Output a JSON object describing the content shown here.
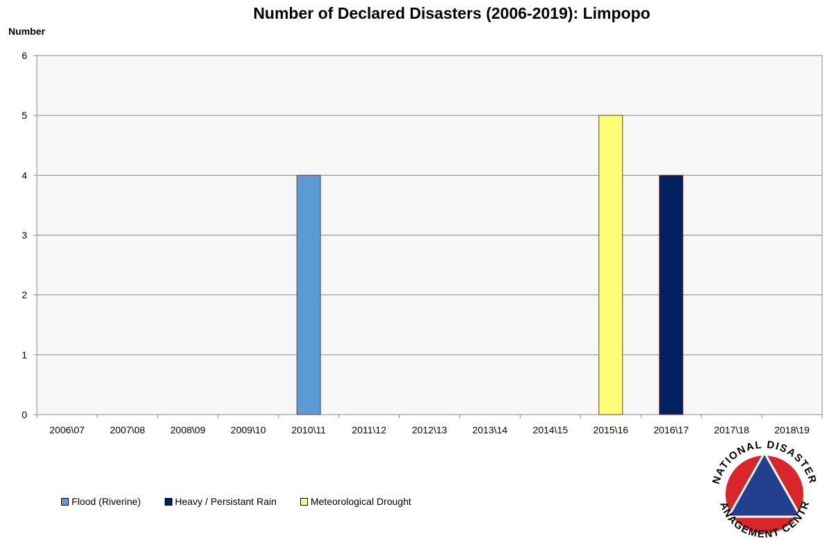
{
  "chart_data": {
    "type": "bar",
    "title": "Number of Declared Disasters (2006-2019): Limpopo",
    "ylabel": "Number",
    "xlabel": "",
    "ylim": [
      0,
      6
    ],
    "yticks": [
      0,
      1,
      2,
      3,
      4,
      5,
      6
    ],
    "grid": true,
    "legend_position": "bottom-left",
    "categories": [
      "2006\\07",
      "2007\\08",
      "2008\\09",
      "2009\\10",
      "2010\\11",
      "2011\\12",
      "2012\\13",
      "2013\\14",
      "2014\\15",
      "2015\\16",
      "2016\\17",
      "2017\\18",
      "2018\\19"
    ],
    "series": [
      {
        "name": "Flood (Riverine)",
        "color": "#5b9bd5",
        "values": [
          0,
          0,
          0,
          0,
          4,
          0,
          0,
          0,
          0,
          0,
          0,
          0,
          0
        ]
      },
      {
        "name": "Heavy / Persistant Rain",
        "color": "#002060",
        "values": [
          0,
          0,
          0,
          0,
          0,
          0,
          0,
          0,
          0,
          0,
          4,
          0,
          0
        ]
      },
      {
        "name": "Meteorological Drought",
        "color": "#ffff75",
        "values": [
          0,
          0,
          0,
          0,
          0,
          0,
          0,
          0,
          0,
          5,
          0,
          0,
          0
        ]
      }
    ]
  },
  "logo": {
    "top_text": "NATIONAL DISASTER",
    "bottom_text": "MANAGEMENT CENTRE",
    "ring_color": "#d9262b",
    "triangle_color": "#233f8f"
  }
}
